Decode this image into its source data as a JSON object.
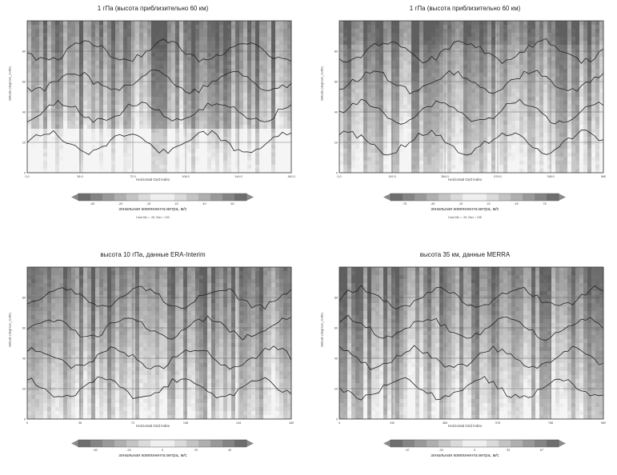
{
  "chart_data": [
    {
      "type": "heatmap",
      "title": "1 гПа (высота приблизительно 60 км)",
      "xlabel": "Horizontal Grid Index",
      "ylabel": "latitude (degrees_north)",
      "x_ticks": [
        "0.0",
        "36.0",
        "72.0",
        "108.0",
        "144.0",
        "180.0"
      ],
      "y_ticks": [
        "0",
        "20",
        "40",
        "60",
        "80"
      ],
      "colorbar_label": "зональная компонента ветра, м/с",
      "colorbar_ticks": [
        "-60",
        "-20",
        "-15",
        "15",
        "40",
        "60"
      ],
      "colorbar_note": "Data Min = -95, Max = 150",
      "grid": true
    },
    {
      "type": "heatmap",
      "title": "1 гПа (высота приблизительно 60 км)",
      "xlabel": "Horizontal Grid Index",
      "ylabel": "latitude (degrees_north)",
      "x_ticks": [
        "0.0",
        "192.0",
        "384.0",
        "576.0",
        "768.0",
        "960"
      ],
      "y_ticks": [
        "0",
        "20",
        "40",
        "60",
        "80"
      ],
      "colorbar_label": "зональная компонента ветра, м/с",
      "colorbar_ticks": [
        "-75",
        "-45",
        "-15",
        "15",
        "45",
        "75"
      ],
      "colorbar_note": "Data Min = -95, Max = 158",
      "grid": true
    },
    {
      "type": "heatmap",
      "title": "высота 10 гПа, данные ERA-Interim",
      "xlabel": "Horizontal Grid Index",
      "ylabel": "latitude (degrees_north)",
      "x_ticks": [
        "0",
        "36",
        "72",
        "108",
        "144",
        "180"
      ],
      "y_ticks": [
        "0",
        "20",
        "40",
        "60",
        "80"
      ],
      "colorbar_label": "зональная компонента ветра, м/с",
      "colorbar_ticks": [
        "-60",
        "-20",
        "0",
        "20",
        "40"
      ],
      "colorbar_note": "",
      "grid": true
    },
    {
      "type": "heatmap",
      "title": "высота 35 км, данные MERRA",
      "xlabel": "Horizontal Grid Index",
      "ylabel": "latitude (degrees_north)",
      "x_ticks": [
        "0",
        "192",
        "384",
        "576",
        "768",
        "960"
      ],
      "y_ticks": [
        "0",
        "20",
        "40",
        "60",
        "80"
      ],
      "colorbar_label": "зональная компонента ветра, м/с",
      "colorbar_ticks": [
        "-67",
        "-33",
        "0",
        "33",
        "67"
      ],
      "colorbar_note": "",
      "grid": true
    }
  ]
}
